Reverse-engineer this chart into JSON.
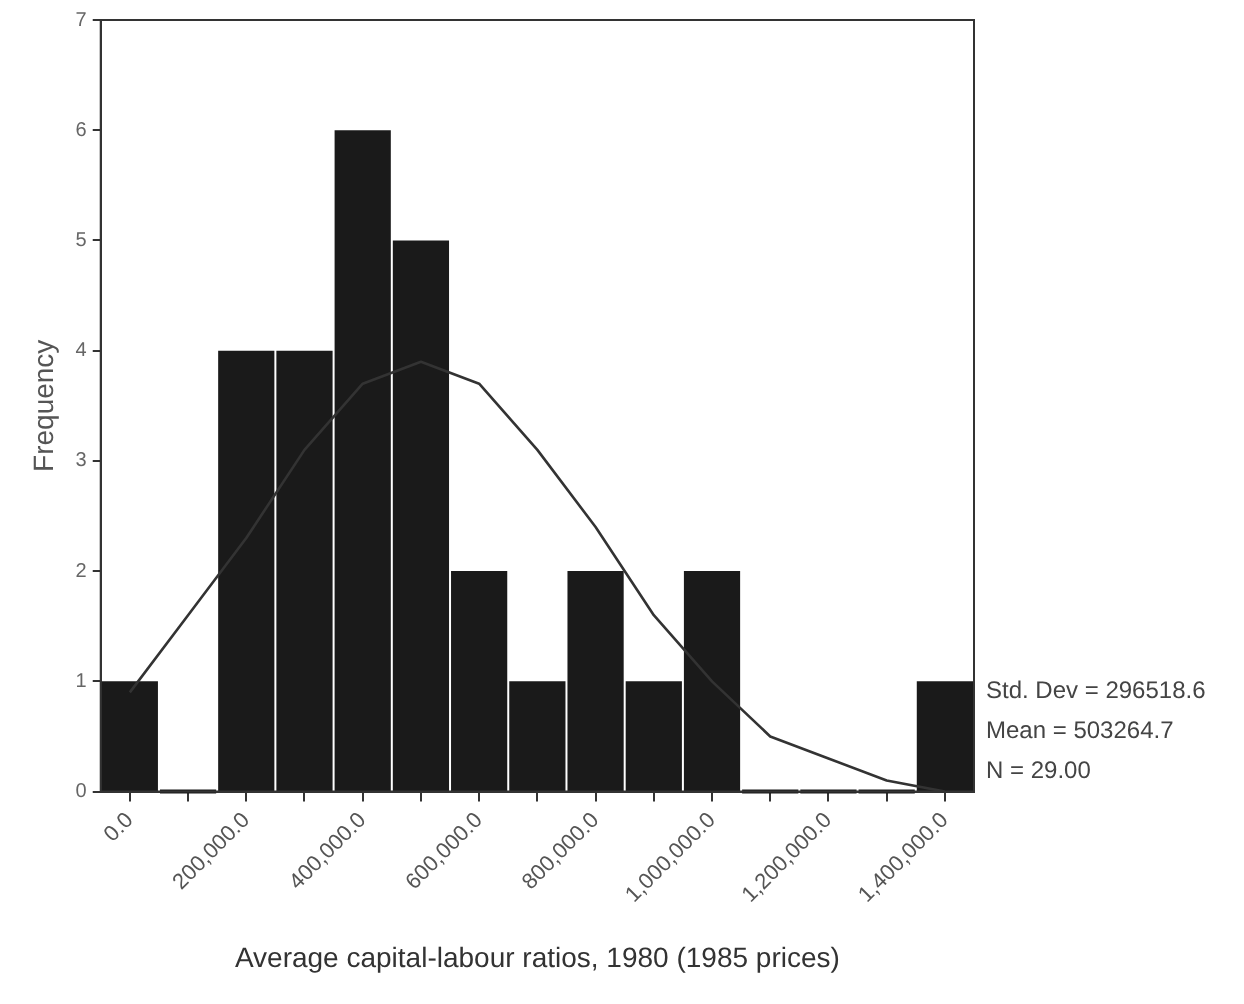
{
  "chart_data": {
    "type": "histogram",
    "xlabel": "Average capital-labour ratios, 1980 (1985 prices)",
    "ylabel": "Frequency",
    "bins": [
      -50000,
      50000,
      150000,
      250000,
      350000,
      450000,
      550000,
      650000,
      750000,
      850000,
      950000,
      1050000,
      1150000,
      1250000,
      1350000,
      1450000
    ],
    "series": [
      {
        "color": "#1a1a1a",
        "values": [
          1,
          0,
          4,
          4,
          6,
          5,
          2,
          1,
          2,
          1,
          2,
          0,
          0,
          0,
          1
        ]
      },
      {
        "type": "line",
        "color": "#333333",
        "x": [
          0,
          100000,
          200000,
          300000,
          400000,
          500000,
          600000,
          700000,
          800000,
          900000,
          1000000,
          1100000,
          1200000,
          1300000,
          1400000
        ],
        "values": [
          0.9,
          1.6,
          2.3,
          3.1,
          3.7,
          3.9,
          3.7,
          3.1,
          2.4,
          1.6,
          1.0,
          0.5,
          0.3,
          0.1,
          0.0
        ]
      }
    ],
    "marker": "none",
    "grid": false,
    "legend": false,
    "xlim": [
      -50000,
      1450000
    ],
    "xticks": [
      {
        "value": 0,
        "label": "0.0"
      },
      {
        "value": 100000,
        "label": null
      },
      {
        "value": 200000,
        "label": "200,000.0"
      },
      {
        "value": 300000,
        "label": null
      },
      {
        "value": 400000,
        "label": "400,000.0"
      },
      {
        "value": 500000,
        "label": null
      },
      {
        "value": 600000,
        "label": "600,000.0"
      },
      {
        "value": 700000,
        "label": null
      },
      {
        "value": 800000,
        "label": "800,000.0"
      },
      {
        "value": 900000,
        "label": null
      },
      {
        "value": 1000000,
        "label": "1,000,000.0"
      },
      {
        "value": 1100000,
        "label": null
      },
      {
        "value": 1200000,
        "label": "1,200,000.0"
      },
      {
        "value": 1300000,
        "label": null
      },
      {
        "value": 1400000,
        "label": "1,400,000.0"
      }
    ],
    "ylim": [
      0,
      7
    ],
    "yticks": [
      0,
      1,
      2,
      3,
      4,
      5,
      6,
      7
    ],
    "annotations": [
      "Std. Dev = 296518.6",
      "Mean = 503264.7",
      "N = 29.00"
    ]
  }
}
